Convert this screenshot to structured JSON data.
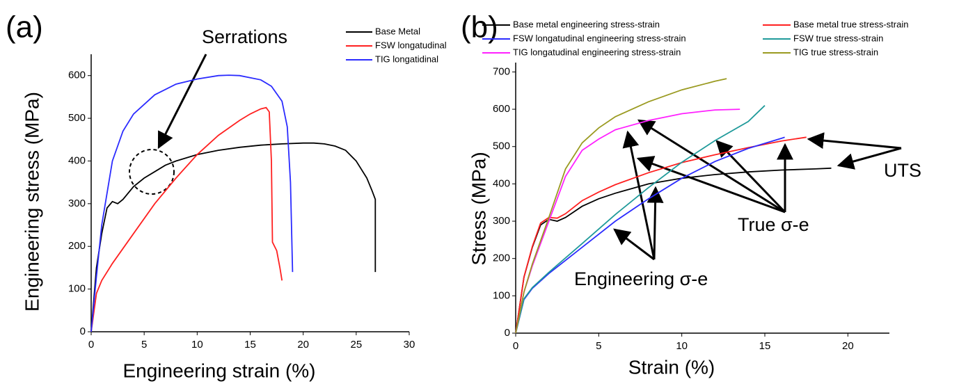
{
  "chart_data": [
    {
      "type": "line",
      "label": "(a)",
      "xlabel": "Engineering strain (%)",
      "ylabel": "Engineering stress (MPa)",
      "annotations": [
        "Serrations"
      ],
      "xlim": [
        0,
        30
      ],
      "ylim": [
        0,
        650
      ],
      "xticks": [
        0,
        5,
        10,
        15,
        20,
        25,
        30
      ],
      "yticks": [
        0,
        100,
        200,
        300,
        400,
        500,
        600
      ],
      "series": [
        {
          "name": "Base Metal",
          "color": "#000000",
          "x": [
            0,
            0.5,
            1,
            1.5,
            2,
            2.5,
            3,
            4,
            5,
            6,
            7,
            8,
            10,
            12,
            14,
            16,
            18,
            20,
            21,
            22,
            23,
            24,
            25,
            26,
            26.5,
            26.8,
            26.8
          ],
          "values": [
            0,
            150,
            230,
            290,
            305,
            300,
            310,
            340,
            360,
            375,
            390,
            400,
            415,
            425,
            432,
            437,
            440,
            442,
            442,
            440,
            435,
            425,
            400,
            360,
            330,
            310,
            140
          ]
        },
        {
          "name": "FSW longatudinal",
          "color": "#ff2020",
          "x": [
            0,
            0.5,
            1,
            2,
            4,
            6,
            8,
            10,
            12,
            14,
            15,
            16,
            16.5,
            16.8,
            17,
            17.1,
            17.5,
            17.8,
            18
          ],
          "values": [
            0,
            90,
            120,
            160,
            230,
            300,
            360,
            415,
            460,
            495,
            510,
            522,
            525,
            515,
            400,
            210,
            190,
            150,
            120
          ]
        },
        {
          "name": "TIG longatidinal",
          "color": "#2b2bff",
          "x": [
            0,
            0.5,
            1,
            2,
            3,
            4,
            6,
            8,
            10,
            12,
            13,
            14,
            16,
            17,
            18,
            18.5,
            18.8,
            19
          ],
          "values": [
            0,
            130,
            250,
            400,
            470,
            510,
            555,
            580,
            592,
            600,
            601,
            600,
            590,
            575,
            540,
            480,
            350,
            140
          ]
        }
      ]
    },
    {
      "type": "line",
      "label": "(b)",
      "xlabel": "Strain (%)",
      "ylabel": "Stress (MPa)",
      "annotations": [
        "UTS",
        "True σ-e",
        "Engineering σ-e"
      ],
      "xlim": [
        0,
        22.5
      ],
      "ylim": [
        0,
        725
      ],
      "xticks": [
        0,
        5,
        10,
        15,
        20
      ],
      "yticks": [
        0,
        100,
        200,
        300,
        400,
        500,
        600,
        700
      ],
      "series": [
        {
          "name": "Base metal engineering stress-strain",
          "color": "#000000",
          "x": [
            0,
            0.5,
            1,
            1.5,
            2,
            2.5,
            3,
            4,
            5,
            6,
            8,
            10,
            12,
            14,
            16,
            18,
            19
          ],
          "values": [
            0,
            150,
            230,
            290,
            305,
            300,
            310,
            340,
            360,
            375,
            400,
            415,
            425,
            432,
            437,
            440,
            442
          ]
        },
        {
          "name": "Base metal true stress-strain",
          "color": "#ff2020",
          "x": [
            0,
            0.5,
            1,
            1.5,
            2,
            2.5,
            3,
            4,
            5,
            6,
            8,
            10,
            12,
            14,
            16,
            17.5
          ],
          "values": [
            0,
            150,
            232,
            295,
            310,
            308,
            320,
            355,
            378,
            398,
            430,
            457,
            478,
            497,
            515,
            525
          ]
        },
        {
          "name": "FSW longatudinal engineering stress-strain",
          "color": "#2b2bff",
          "x": [
            0,
            0.5,
            1,
            2,
            4,
            6,
            8,
            10,
            12,
            14,
            16,
            16.2
          ],
          "values": [
            0,
            90,
            120,
            160,
            230,
            300,
            360,
            415,
            460,
            495,
            522,
            525
          ]
        },
        {
          "name": "FSW true stress-strain",
          "color": "#1f9a9a",
          "x": [
            0,
            0.5,
            1,
            2,
            4,
            6,
            8,
            10,
            12,
            14,
            15
          ],
          "values": [
            0,
            92,
            122,
            163,
            240,
            318,
            390,
            458,
            516,
            567,
            610
          ]
        },
        {
          "name": "TIG longatudinal engineering stress-strain",
          "color": "#ff20ff",
          "x": [
            0,
            0.5,
            1,
            2,
            3,
            4,
            5,
            6,
            8,
            10,
            12,
            13.5
          ],
          "values": [
            0,
            110,
            180,
            300,
            420,
            490,
            520,
            545,
            570,
            588,
            598,
            600
          ]
        },
        {
          "name": "TIG true stress-strain",
          "color": "#9a9a20",
          "x": [
            0,
            0.5,
            1,
            2,
            3,
            4,
            5,
            6,
            8,
            10,
            12,
            12.7
          ],
          "values": [
            0,
            110,
            185,
            310,
            440,
            510,
            550,
            580,
            620,
            652,
            675,
            682
          ]
        }
      ]
    }
  ]
}
